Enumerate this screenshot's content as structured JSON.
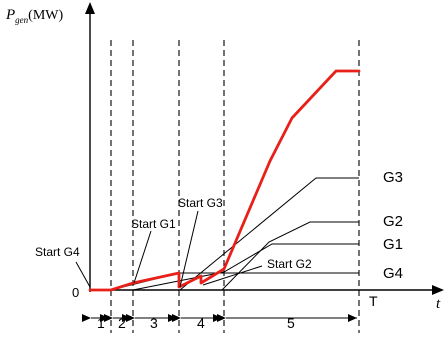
{
  "diagram": {
    "y_axis_label": {
      "symbol": "P",
      "subscript": "gen",
      "unit": "(MW)"
    },
    "x_axis_label": "t",
    "origin_label": "0",
    "end_time_label": "T",
    "interval_labels": [
      "1",
      "2",
      "3",
      "4",
      "5"
    ],
    "start_labels": {
      "g4": "Start G4",
      "g1": "Start G1",
      "g3": "Start G3",
      "g2": "Start G2"
    },
    "generator_labels": {
      "g3": "G3",
      "g2": "G2",
      "g1": "G1",
      "g4": "G4"
    },
    "colors": {
      "total_curve": "#e8201a",
      "lines": "#000000"
    }
  }
}
